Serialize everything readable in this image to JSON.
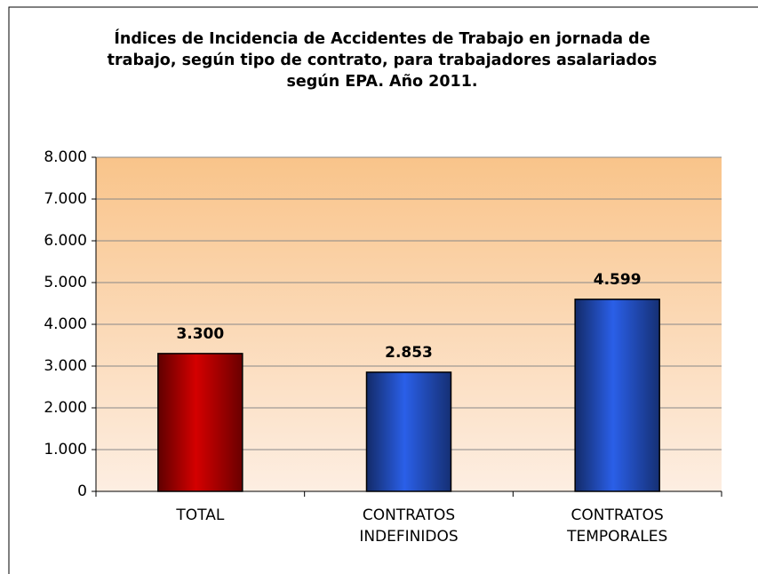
{
  "chart_data": {
    "type": "bar",
    "title": "Índices de Incidencia de Accidentes de Trabajo en jornada de trabajo, según tipo de contrato, para trabajadores asalariados según EPA. Año 2011.",
    "categories": [
      "TOTAL",
      "CONTRATOS INDEFINIDOS",
      "CONTRATOS TEMPORALES"
    ],
    "values": [
      3300,
      2853,
      4599
    ],
    "value_labels": [
      "3.300",
      "2.853",
      "4.599"
    ],
    "colors": [
      "#d40000",
      "#2a5fe8",
      "#2a5fe8"
    ],
    "ylim": [
      0,
      8000
    ],
    "yticks": [
      0,
      {
        "value": 1000,
        "label": "1.000"
      },
      {
        "value": 2000,
        "label": "2.000"
      },
      {
        "value": 3000,
        "label": "3.000"
      },
      {
        "value": 4000,
        "label": "4.000"
      },
      {
        "value": 5000,
        "label": "5.000"
      },
      {
        "value": 6000,
        "label": "6.000"
      },
      {
        "value": 7000,
        "label": "7.000"
      },
      {
        "value": 8000,
        "label": "8.000"
      }
    ],
    "grid": true
  }
}
